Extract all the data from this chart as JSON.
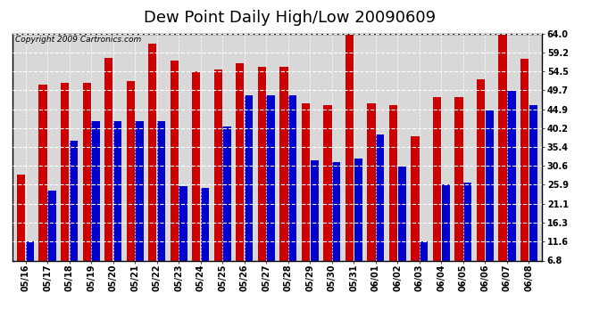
{
  "title": "Dew Point Daily High/Low 20090609",
  "copyright": "Copyright 2009 Cartronics.com",
  "dates": [
    "05/16",
    "05/17",
    "05/18",
    "05/19",
    "05/20",
    "05/21",
    "05/22",
    "05/23",
    "05/24",
    "05/25",
    "05/26",
    "05/27",
    "05/28",
    "05/29",
    "05/30",
    "05/31",
    "06/01",
    "06/02",
    "06/03",
    "06/04",
    "06/05",
    "06/06",
    "06/07",
    "06/08"
  ],
  "highs": [
    28.5,
    51.0,
    51.5,
    51.5,
    57.8,
    52.0,
    61.5,
    57.2,
    54.5,
    55.0,
    56.5,
    55.5,
    55.5,
    46.5,
    46.0,
    64.0,
    46.5,
    46.0,
    38.0,
    48.0,
    48.0,
    52.5,
    64.0,
    57.5
  ],
  "lows": [
    11.6,
    24.5,
    37.0,
    42.0,
    42.0,
    42.0,
    42.0,
    25.5,
    25.0,
    40.5,
    48.5,
    48.5,
    48.5,
    32.0,
    31.5,
    32.5,
    38.5,
    30.5,
    11.6,
    26.0,
    26.5,
    44.5,
    49.5,
    46.0
  ],
  "high_color": "#cc0000",
  "low_color": "#0000cc",
  "bg_color": "#ffffff",
  "plot_bg_color": "#d8d8d8",
  "grid_color": "#ffffff",
  "yticks": [
    6.8,
    11.6,
    16.3,
    21.1,
    25.9,
    30.6,
    35.4,
    40.2,
    44.9,
    49.7,
    54.5,
    59.2,
    64.0
  ],
  "ymin": 6.8,
  "ymax": 64.0,
  "title_fontsize": 13,
  "tick_fontsize": 7,
  "copyright_fontsize": 6.5
}
